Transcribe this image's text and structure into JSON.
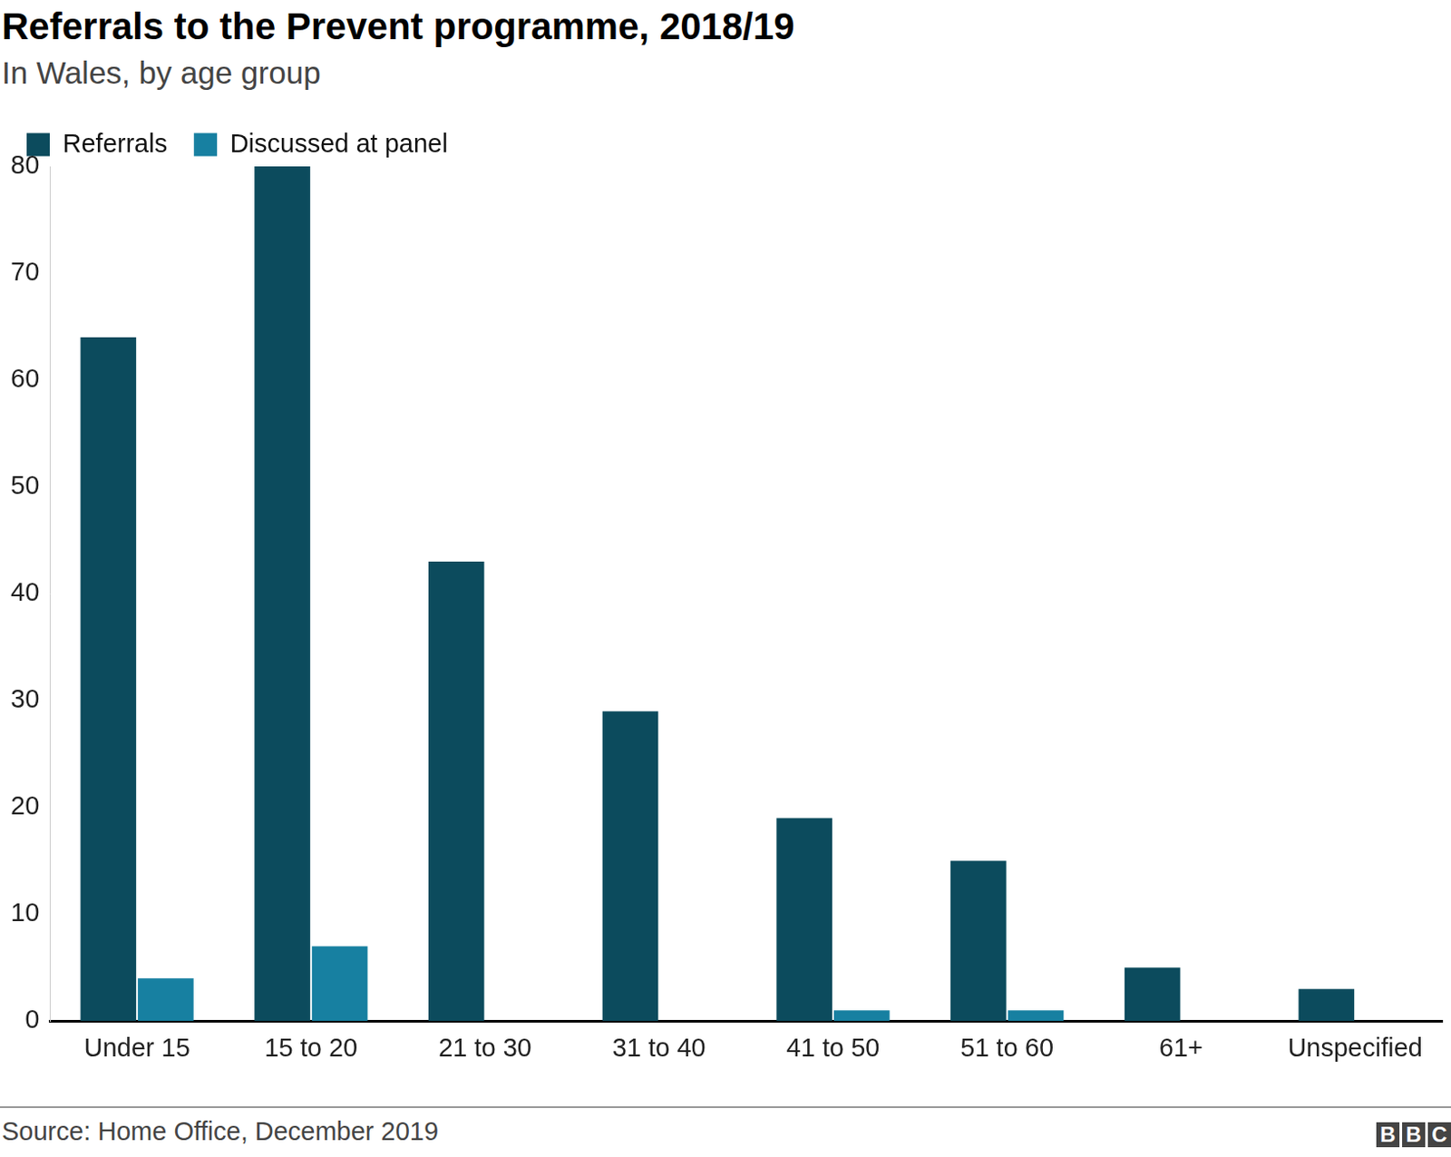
{
  "chart_data": {
    "type": "bar",
    "title": "Referrals to the Prevent programme, 2018/19",
    "subtitle": "In Wales, by age group",
    "categories": [
      "Under 15",
      "15 to 20",
      "21 to 30",
      "31 to 40",
      "41 to 50",
      "51 to 60",
      "61+",
      "Unspecified"
    ],
    "series": [
      {
        "name": "Referrals",
        "color": "#0c4b5d",
        "values": [
          64,
          80,
          43,
          29,
          19,
          15,
          5,
          3
        ]
      },
      {
        "name": "Discussed at panel",
        "color": "#1780a1",
        "values": [
          4,
          7,
          0,
          0,
          1,
          1,
          0,
          0
        ]
      }
    ],
    "ylim": [
      0,
      80
    ],
    "yticks": [
      0,
      10,
      20,
      30,
      40,
      50,
      60,
      70,
      80
    ],
    "grid": false,
    "legend": "top-left",
    "source": "Source: Home Office, December 2019",
    "credit": "BBC"
  }
}
